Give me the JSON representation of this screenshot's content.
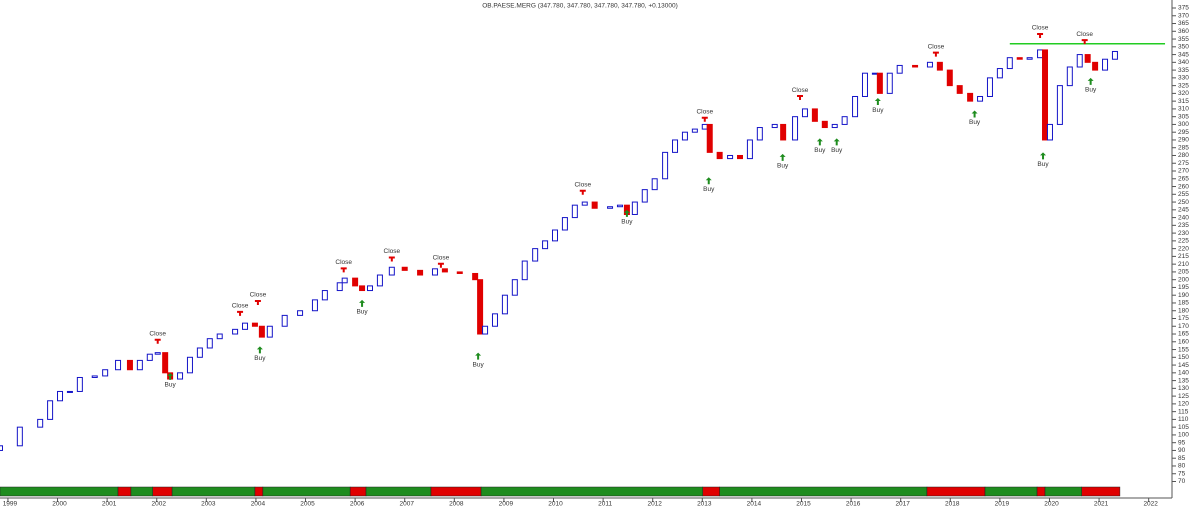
{
  "chart_data": {
    "type": "candlestick",
    "title": "OB.PAESE.MERG (347.780, 347.780, 347.780, 347.780, +0.13000)",
    "up_color": "#1414c8",
    "down_color": "#e00000",
    "grid": false,
    "x": [
      1998.84,
      1999.24,
      1999.65,
      1999.85,
      2000.05,
      2000.25,
      2000.45,
      2000.75,
      2000.96,
      2001.22,
      2001.46,
      2001.66,
      2001.86,
      2002.02,
      2002.17,
      2002.27,
      2002.47,
      2002.67,
      2002.87,
      2003.07,
      2003.27,
      2003.58,
      2003.78,
      2003.98,
      2004.12,
      2004.28,
      2004.58,
      2004.89,
      2005.19,
      2005.39,
      2005.69,
      2005.79,
      2006.0,
      2006.14,
      2006.3,
      2006.5,
      2006.74,
      2007.0,
      2007.31,
      2007.61,
      2007.81,
      2008.11,
      2008.42,
      2008.52,
      2008.62,
      2008.82,
      2009.02,
      2009.22,
      2009.42,
      2009.63,
      2009.83,
      2010.03,
      2010.23,
      2010.43,
      2010.63,
      2010.83,
      2011.14,
      2011.34,
      2011.48,
      2011.64,
      2011.84,
      2012.04,
      2012.25,
      2012.45,
      2012.65,
      2012.85,
      2013.05,
      2013.15,
      2013.35,
      2013.56,
      2013.76,
      2013.96,
      2014.16,
      2014.46,
      2014.63,
      2014.87,
      2015.07,
      2015.27,
      2015.47,
      2015.67,
      2015.87,
      2016.08,
      2016.28,
      2016.48,
      2016.58,
      2016.78,
      2016.98,
      2017.29,
      2017.59,
      2017.79,
      2017.99,
      2018.19,
      2018.4,
      2018.6,
      2018.8,
      2019.0,
      2019.2,
      2019.4,
      2019.6,
      2019.81,
      2019.91,
      2020.01,
      2020.21,
      2020.41,
      2020.61,
      2020.77,
      2020.92,
      2021.12,
      2021.32
    ],
    "open": [
      90,
      93,
      105,
      110,
      122,
      128,
      128,
      137,
      138,
      142,
      148,
      142,
      148,
      152,
      153,
      140,
      136,
      140,
      150,
      156,
      162,
      165,
      168,
      172,
      170,
      163,
      170,
      177,
      180,
      187,
      193,
      198,
      201,
      196,
      193,
      196,
      203,
      208,
      206,
      203,
      207,
      205,
      204,
      200,
      165,
      170,
      178,
      190,
      200,
      212,
      220,
      225,
      232,
      240,
      248,
      250,
      246,
      247,
      248,
      242,
      250,
      258,
      265,
      282,
      290,
      295,
      297,
      300,
      282,
      278,
      280,
      278,
      290,
      298,
      300,
      290,
      305,
      310,
      302,
      298,
      300,
      305,
      318,
      333,
      333,
      320,
      333,
      338,
      337,
      340,
      335,
      325,
      320,
      315,
      318,
      330,
      336,
      343,
      342,
      343,
      348,
      290,
      300,
      325,
      337,
      345,
      340,
      335,
      342
    ],
    "close": [
      93,
      105,
      110,
      122,
      128,
      128,
      137,
      138,
      142,
      148,
      142,
      148,
      152,
      153,
      140,
      136,
      140,
      150,
      156,
      162,
      165,
      168,
      172,
      170,
      163,
      170,
      177,
      180,
      187,
      193,
      198,
      201,
      196,
      193,
      196,
      203,
      208,
      206,
      203,
      207,
      205,
      204,
      200,
      165,
      170,
      178,
      190,
      200,
      212,
      220,
      225,
      232,
      240,
      248,
      250,
      246,
      247,
      248,
      242,
      250,
      258,
      265,
      282,
      290,
      295,
      297,
      300,
      282,
      278,
      280,
      278,
      290,
      298,
      300,
      290,
      305,
      310,
      302,
      298,
      300,
      305,
      318,
      333,
      333,
      320,
      333,
      338,
      337,
      340,
      335,
      325,
      320,
      315,
      318,
      330,
      336,
      343,
      342,
      343,
      348,
      290,
      300,
      325,
      337,
      345,
      340,
      335,
      342,
      347
    ],
    "signals": [
      {
        "x": 2002.02,
        "value": 160,
        "label": "Close"
      },
      {
        "x": 2003.68,
        "value": 178,
        "label": "Close"
      },
      {
        "x": 2004.04,
        "value": 185,
        "label": "Close"
      },
      {
        "x": 2005.77,
        "value": 206,
        "label": "Close"
      },
      {
        "x": 2006.74,
        "value": 213,
        "label": "Close"
      },
      {
        "x": 2007.73,
        "value": 209,
        "label": "Close"
      },
      {
        "x": 2010.59,
        "value": 256,
        "label": "Close"
      },
      {
        "x": 2013.05,
        "value": 303,
        "label": "Close"
      },
      {
        "x": 2014.97,
        "value": 317,
        "label": "Close"
      },
      {
        "x": 2017.71,
        "value": 345,
        "label": "Close"
      },
      {
        "x": 2019.81,
        "value": 357,
        "label": "Close"
      },
      {
        "x": 2020.71,
        "value": 353,
        "label": "Close"
      },
      {
        "x": 2002.27,
        "value": 140,
        "label": "Buy"
      },
      {
        "x": 2004.08,
        "value": 157,
        "label": "Buy"
      },
      {
        "x": 2006.14,
        "value": 187,
        "label": "Buy"
      },
      {
        "x": 2008.48,
        "value": 153,
        "label": "Buy"
      },
      {
        "x": 2011.48,
        "value": 245,
        "label": "Buy"
      },
      {
        "x": 2013.13,
        "value": 266,
        "label": "Buy"
      },
      {
        "x": 2014.62,
        "value": 281,
        "label": "Buy"
      },
      {
        "x": 2015.37,
        "value": 291,
        "label": "Buy"
      },
      {
        "x": 2015.71,
        "value": 291,
        "label": "Buy"
      },
      {
        "x": 2016.54,
        "value": 317,
        "label": "Buy"
      },
      {
        "x": 2018.49,
        "value": 309,
        "label": "Buy"
      },
      {
        "x": 2019.87,
        "value": 282,
        "label": "Buy"
      },
      {
        "x": 2020.83,
        "value": 330,
        "label": "Buy"
      }
    ],
    "hline": {
      "value": 352,
      "start": 2019.2,
      "end": 2022.33,
      "color": "#22cc22"
    },
    "bands": [
      {
        "start": 1998.84,
        "end": 2001.22,
        "color": "#1e8c1e"
      },
      {
        "start": 2001.22,
        "end": 2001.48,
        "color": "#e00000"
      },
      {
        "start": 2001.48,
        "end": 2001.92,
        "color": "#1e8c1e"
      },
      {
        "start": 2001.92,
        "end": 2002.31,
        "color": "#e00000"
      },
      {
        "start": 2002.31,
        "end": 2003.98,
        "color": "#1e8c1e"
      },
      {
        "start": 2003.98,
        "end": 2004.14,
        "color": "#e00000"
      },
      {
        "start": 2004.14,
        "end": 2005.9,
        "color": "#1e8c1e"
      },
      {
        "start": 2005.9,
        "end": 2006.22,
        "color": "#e00000"
      },
      {
        "start": 2006.22,
        "end": 2007.53,
        "color": "#1e8c1e"
      },
      {
        "start": 2007.53,
        "end": 2008.54,
        "color": "#e00000"
      },
      {
        "start": 2008.54,
        "end": 2013.01,
        "color": "#1e8c1e"
      },
      {
        "start": 2013.01,
        "end": 2013.35,
        "color": "#e00000"
      },
      {
        "start": 2013.35,
        "end": 2017.53,
        "color": "#1e8c1e"
      },
      {
        "start": 2017.53,
        "end": 2018.7,
        "color": "#e00000"
      },
      {
        "start": 2018.7,
        "end": 2019.75,
        "color": "#1e8c1e"
      },
      {
        "start": 2019.75,
        "end": 2019.91,
        "color": "#e00000"
      },
      {
        "start": 2019.91,
        "end": 2020.65,
        "color": "#1e8c1e"
      },
      {
        "start": 2020.65,
        "end": 2021.42,
        "color": "#e00000"
      }
    ],
    "xlim": [
      1998.84,
      2022.43
    ],
    "xticks": [
      1999,
      2000,
      2001,
      2002,
      2003,
      2004,
      2005,
      2006,
      2007,
      2008,
      2009,
      2010,
      2011,
      2012,
      2013,
      2014,
      2015,
      2016,
      2017,
      2018,
      2019,
      2020,
      2021,
      2022
    ],
    "ylim": [
      70,
      375
    ],
    "yticks": [
      70,
      75,
      80,
      85,
      90,
      95,
      100,
      105,
      110,
      115,
      120,
      125,
      130,
      135,
      140,
      145,
      150,
      155,
      160,
      165,
      170,
      175,
      180,
      185,
      190,
      195,
      200,
      205,
      210,
      215,
      220,
      225,
      230,
      235,
      240,
      245,
      250,
      255,
      260,
      265,
      270,
      275,
      280,
      285,
      290,
      295,
      300,
      305,
      310,
      315,
      320,
      325,
      330,
      335,
      340,
      345,
      350,
      355,
      360,
      365,
      370,
      375
    ]
  }
}
